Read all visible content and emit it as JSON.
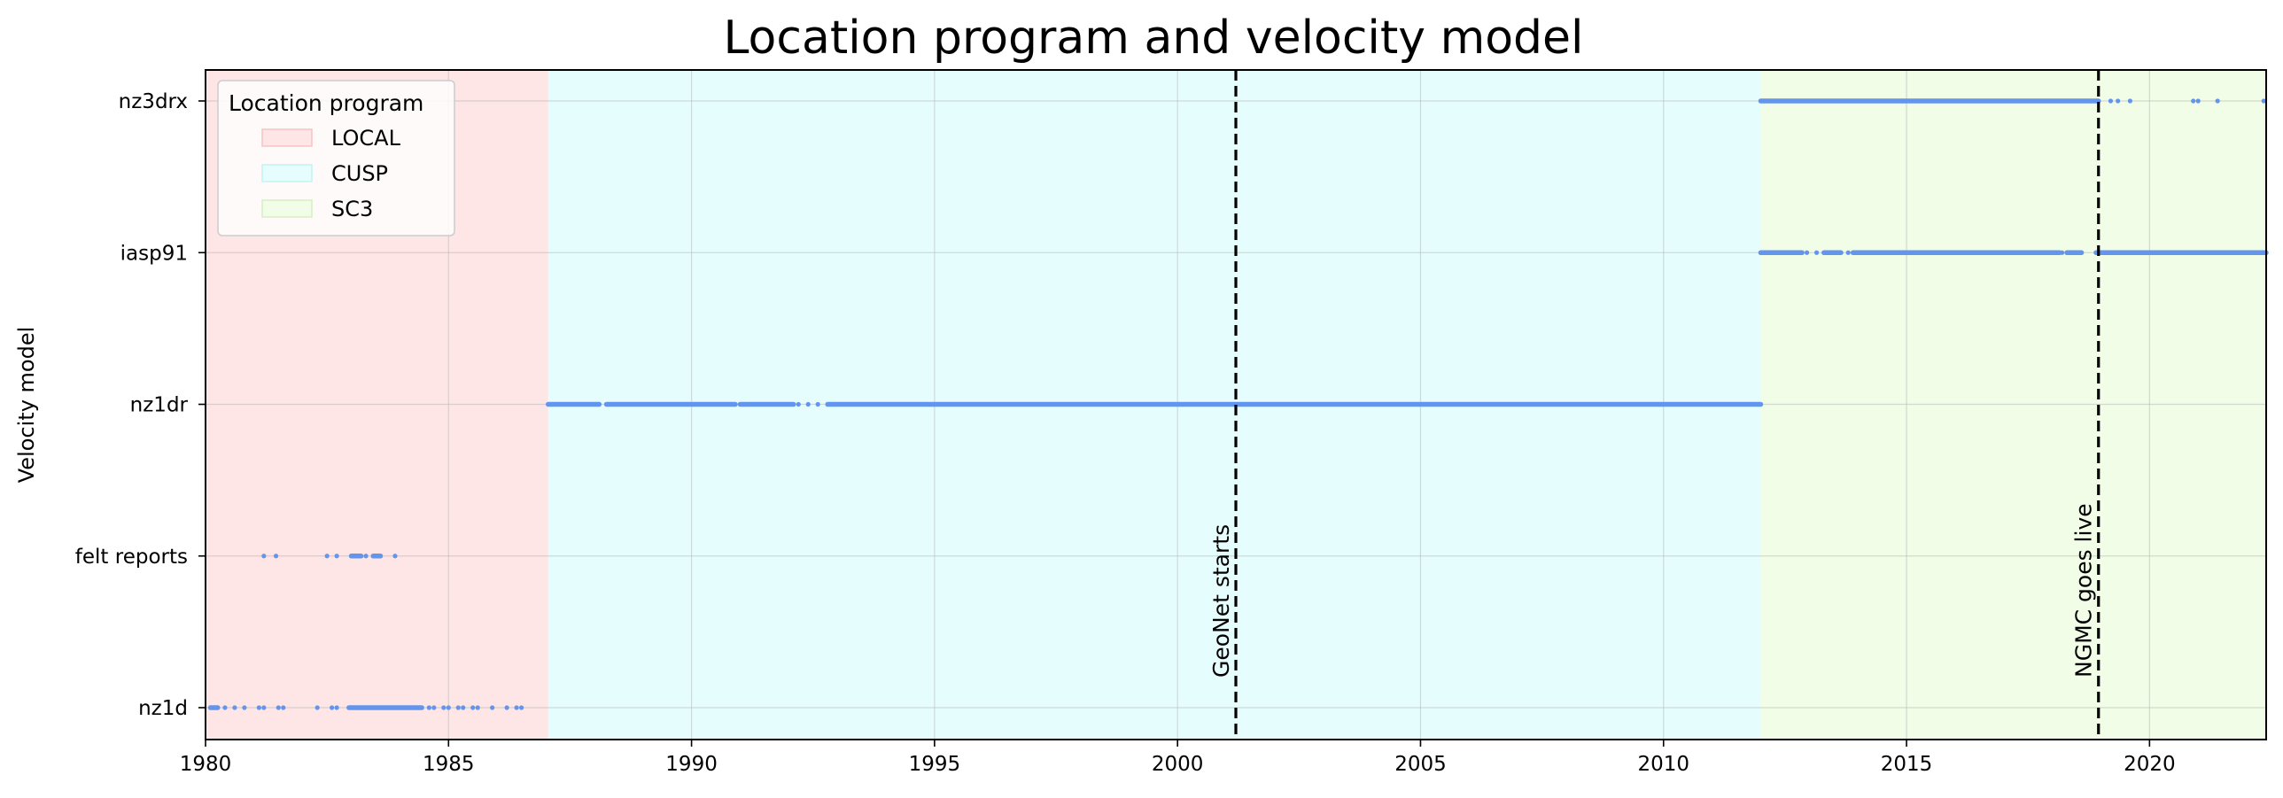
{
  "chart_data": {
    "type": "scatter",
    "title": "Location program and velocity model",
    "xlabel": "",
    "ylabel": "Velocity model",
    "xlim": [
      1980,
      2022.4
    ],
    "x_ticks": [
      1980,
      1985,
      1990,
      1995,
      2000,
      2005,
      2010,
      2015,
      2020
    ],
    "categories": [
      "nz1d",
      "felt reports",
      "nz1dr",
      "iasp91",
      "nz3drx"
    ],
    "grid": true,
    "marker_color": "#6495ED",
    "series": [
      {
        "category": "nz1d",
        "runs": [
          [
            1980.1,
            1980.25
          ],
          [
            1982.95,
            1984.45
          ]
        ],
        "points": [
          1980.4,
          1980.6,
          1980.8,
          1981.1,
          1981.2,
          1981.5,
          1981.6,
          1982.3,
          1982.6,
          1982.7,
          1984.6,
          1984.7,
          1984.9,
          1985.0,
          1985.2,
          1985.3,
          1985.5,
          1985.6,
          1985.9,
          1986.2,
          1986.4,
          1986.5
        ]
      },
      {
        "category": "felt reports",
        "runs": [
          [
            1983.0,
            1983.2
          ],
          [
            1983.45,
            1983.6
          ]
        ],
        "points": [
          1981.2,
          1981.45,
          1982.5,
          1982.7,
          1983.3,
          1983.9
        ]
      },
      {
        "category": "nz1dr",
        "runs": [
          [
            1987.05,
            1988.1
          ],
          [
            1988.25,
            1990.9
          ],
          [
            1991.0,
            1992.1
          ],
          [
            1992.8,
            2012.0
          ]
        ],
        "points": [
          1992.2,
          1992.4,
          1992.6
        ]
      },
      {
        "category": "iasp91",
        "runs": [
          [
            2012.0,
            2012.85
          ],
          [
            2013.3,
            2013.65
          ],
          [
            2013.9,
            2018.15
          ],
          [
            2018.3,
            2018.6
          ],
          [
            2018.9,
            2022.4
          ]
        ],
        "points": [
          2012.95,
          2013.15,
          2013.8,
          2018.2
        ]
      },
      {
        "category": "nz3drx",
        "runs": [
          [
            2012.0,
            2018.95
          ]
        ],
        "points": [
          2019.2,
          2019.35,
          2019.6,
          2020.9,
          2021.0,
          2021.4,
          2022.35
        ]
      }
    ],
    "bands": [
      {
        "name": "LOCAL",
        "start": 1980,
        "end": 1987.05,
        "color": "#FDE6E5"
      },
      {
        "name": "CUSP",
        "start": 1987.05,
        "end": 2012.0,
        "color": "#E6FDFD"
      },
      {
        "name": "SC3",
        "start": 2012.0,
        "end": 2022.4,
        "color": "#F1FDE6"
      }
    ],
    "legend": {
      "title": "Location program",
      "placement": "upper-left",
      "entries": [
        {
          "label": "LOCAL",
          "color": "#FDE6E5",
          "edge": "#F7C3C1"
        },
        {
          "label": "CUSP",
          "color": "#E6FDFD",
          "edge": "#C3F3F4"
        },
        {
          "label": "SC3",
          "color": "#F1FDE6",
          "edge": "#D6EFC1"
        }
      ]
    },
    "events": [
      {
        "label": "GeoNet starts",
        "x": 2001.2
      },
      {
        "label": "NGMC goes live",
        "x": 2018.95
      }
    ]
  }
}
